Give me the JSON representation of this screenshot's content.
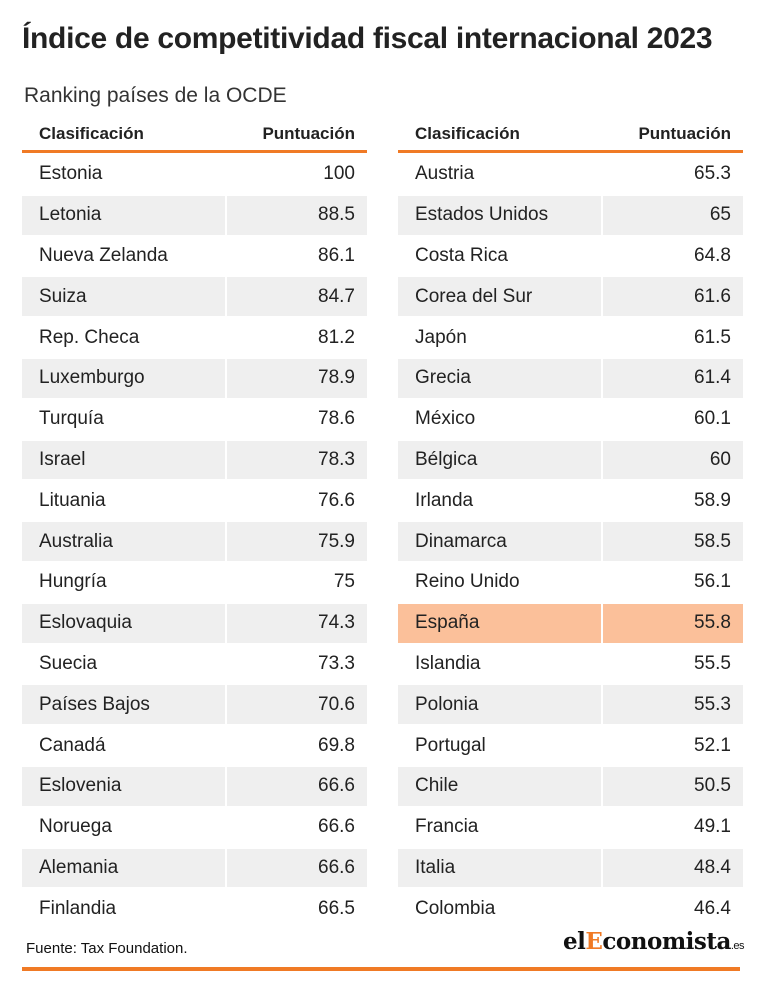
{
  "title": "Índice de competitividad fiscal internacional 2023",
  "subtitle": "Ranking países de la OCDE",
  "source": "Fuente: Tax  Foundation.",
  "logo": {
    "prefix": "el",
    "highlight": "E",
    "main": "conomista",
    "suffix": ".es"
  },
  "colors": {
    "accent": "#f07a25",
    "highlight_row": "#fbc09a",
    "shaded_row": "#efefef"
  },
  "chart_data": {
    "type": "table",
    "columns": [
      "Clasificación",
      "Puntuación"
    ],
    "highlighted": "España",
    "left": [
      {
        "country": "Estonia",
        "score": "100"
      },
      {
        "country": "Letonia",
        "score": "88.5"
      },
      {
        "country": "Nueva Zelanda",
        "score": "86.1"
      },
      {
        "country": "Suiza",
        "score": "84.7"
      },
      {
        "country": "Rep. Checa",
        "score": "81.2"
      },
      {
        "country": "Luxemburgo",
        "score": "78.9"
      },
      {
        "country": "Turquía",
        "score": "78.6"
      },
      {
        "country": "Israel",
        "score": "78.3"
      },
      {
        "country": "Lituania",
        "score": "76.6"
      },
      {
        "country": "Australia",
        "score": "75.9"
      },
      {
        "country": "Hungría",
        "score": "75"
      },
      {
        "country": "Eslovaquia",
        "score": "74.3"
      },
      {
        "country": "Suecia",
        "score": "73.3"
      },
      {
        "country": "Países Bajos",
        "score": "70.6"
      },
      {
        "country": "Canadá",
        "score": "69.8"
      },
      {
        "country": "Eslovenia",
        "score": "66.6"
      },
      {
        "country": "Noruega",
        "score": "66.6"
      },
      {
        "country": "Alemania",
        "score": "66.6"
      },
      {
        "country": "Finlandia",
        "score": "66.5"
      }
    ],
    "right": [
      {
        "country": "Austria",
        "score": "65.3"
      },
      {
        "country": "Estados Unidos",
        "score": "65"
      },
      {
        "country": "Costa Rica",
        "score": "64.8"
      },
      {
        "country": "Corea del Sur",
        "score": "61.6"
      },
      {
        "country": "Japón",
        "score": "61.5"
      },
      {
        "country": "Grecia",
        "score": "61.4"
      },
      {
        "country": "México",
        "score": "60.1"
      },
      {
        "country": "Bélgica",
        "score": "60"
      },
      {
        "country": "Irlanda",
        "score": "58.9"
      },
      {
        "country": "Dinamarca",
        "score": "58.5"
      },
      {
        "country": "Reino Unido",
        "score": "56.1"
      },
      {
        "country": "España",
        "score": "55.8"
      },
      {
        "country": "Islandia",
        "score": "55.5"
      },
      {
        "country": "Polonia",
        "score": "55.3"
      },
      {
        "country": "Portugal",
        "score": "52.1"
      },
      {
        "country": "Chile",
        "score": "50.5"
      },
      {
        "country": "Francia",
        "score": "49.1"
      },
      {
        "country": "Italia",
        "score": "48.4"
      },
      {
        "country": "Colombia",
        "score": "46.4"
      }
    ]
  }
}
